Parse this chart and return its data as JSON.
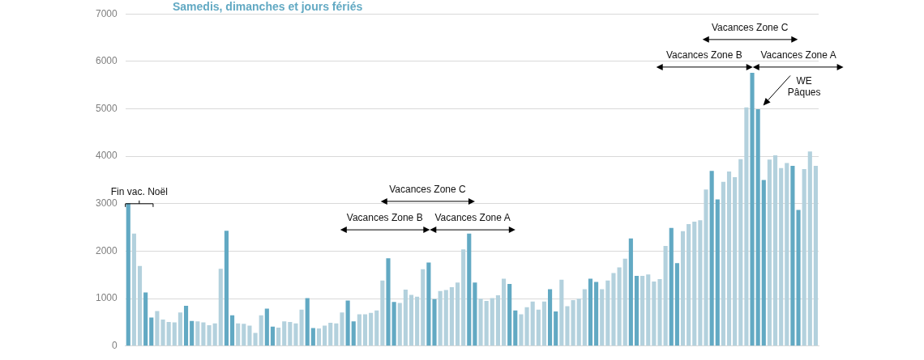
{
  "chart_data": {
    "type": "bar",
    "categories": [
      null,
      null,
      null,
      null,
      null,
      null,
      null,
      null,
      null,
      null,
      null,
      null,
      null,
      null,
      null,
      null,
      null,
      null,
      null,
      null,
      null,
      null,
      null,
      null,
      null,
      null,
      null,
      null,
      null,
      null,
      null,
      null,
      null,
      null,
      null,
      null,
      null,
      null,
      null,
      null,
      null,
      null,
      null,
      null,
      null,
      null,
      null,
      null,
      null,
      null,
      null,
      null,
      null,
      null,
      null,
      null,
      null,
      null,
      null,
      null,
      null,
      null,
      null,
      null,
      null,
      null,
      null,
      null,
      null,
      null,
      null,
      null,
      null,
      null,
      null,
      null,
      null,
      null,
      null,
      null,
      null,
      null,
      null,
      null,
      null,
      null,
      null,
      null,
      null,
      null,
      null,
      null,
      null,
      null,
      null,
      null,
      null,
      null,
      null,
      null,
      null,
      null,
      null,
      null,
      null,
      null,
      null,
      null,
      null,
      null,
      null,
      null,
      null,
      null,
      null,
      null,
      null,
      null,
      null,
      null
    ],
    "series": [
      {
        "name": "Samedis, dimanches et jours fériés",
        "color": "#62a9c3",
        "values": [
          3010,
          null,
          null,
          1130,
          600,
          null,
          null,
          null,
          null,
          null,
          850,
          530,
          null,
          null,
          null,
          null,
          null,
          2430,
          650,
          null,
          null,
          null,
          null,
          null,
          790,
          410,
          null,
          null,
          null,
          null,
          null,
          1010,
          380,
          null,
          null,
          null,
          null,
          null,
          960,
          520,
          null,
          null,
          null,
          null,
          null,
          1850,
          930,
          null,
          null,
          null,
          null,
          null,
          1760,
          990,
          null,
          null,
          null,
          null,
          null,
          2370,
          1340,
          null,
          null,
          null,
          null,
          null,
          1310,
          750,
          null,
          null,
          null,
          null,
          null,
          1200,
          730,
          null,
          null,
          null,
          null,
          null,
          1420,
          1350,
          null,
          null,
          null,
          null,
          null,
          2270,
          1480,
          null,
          null,
          null,
          null,
          null,
          2490,
          1750,
          null,
          null,
          null,
          null,
          null,
          3690,
          3090,
          null,
          null,
          null,
          null,
          null,
          5760,
          4990,
          3500,
          null,
          null,
          null,
          null,
          3800,
          2870,
          null,
          null,
          null
        ]
      },
      {
        "color": "#b3d1dd",
        "values": [
          null,
          2370,
          1690,
          null,
          null,
          740,
          560,
          510,
          500,
          710,
          null,
          null,
          520,
          500,
          440,
          480,
          1630,
          null,
          null,
          480,
          470,
          430,
          280,
          650,
          null,
          null,
          390,
          520,
          510,
          480,
          770,
          null,
          null,
          370,
          430,
          490,
          480,
          710,
          null,
          null,
          670,
          670,
          700,
          750,
          1380,
          null,
          null,
          910,
          1190,
          1080,
          1040,
          1620,
          null,
          null,
          1160,
          1180,
          1240,
          1340,
          2040,
          null,
          null,
          1000,
          950,
          1010,
          1070,
          1420,
          null,
          null,
          670,
          820,
          940,
          770,
          940,
          null,
          null,
          1400,
          840,
          970,
          1000,
          1200,
          null,
          null,
          1200,
          1380,
          1540,
          1660,
          1840,
          null,
          null,
          1480,
          1510,
          1360,
          1410,
          2110,
          null,
          null,
          2420,
          2570,
          2620,
          2650,
          3300,
          null,
          null,
          3460,
          3680,
          3560,
          3940,
          5030,
          null,
          null,
          null,
          3930,
          4020,
          3750,
          3860,
          null,
          null,
          3730,
          4100,
          3800
        ]
      }
    ],
    "ylim": [
      0,
      7000
    ],
    "yticks": [
      0,
      1000,
      2000,
      3000,
      4000,
      5000,
      6000,
      7000
    ],
    "grid": "y",
    "annotations": [
      "Fin vac. Noël",
      "Vacances Zone C",
      "Vacances Zone B",
      "Vacances Zone A",
      "Vacances Zone C",
      "Vacances Zone B",
      "Vacances Zone A",
      "WE\nPâques"
    ]
  }
}
